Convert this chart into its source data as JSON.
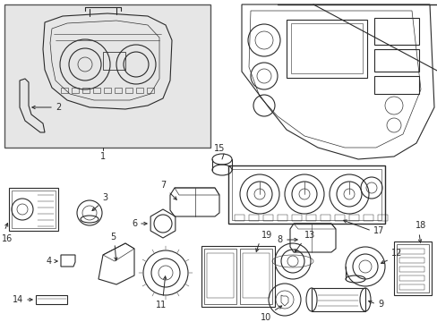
{
  "bg_color": "#ffffff",
  "line_color": "#2a2a2a",
  "box_bg": "#e8e8e8",
  "lw": 0.8,
  "figw": 4.89,
  "figh": 3.6,
  "dpi": 100,
  "parts_labels": [
    "1",
    "2",
    "3",
    "4",
    "5",
    "6",
    "7",
    "8",
    "9",
    "10",
    "11",
    "12",
    "13",
    "14",
    "15",
    "16",
    "17",
    "18",
    "19"
  ]
}
